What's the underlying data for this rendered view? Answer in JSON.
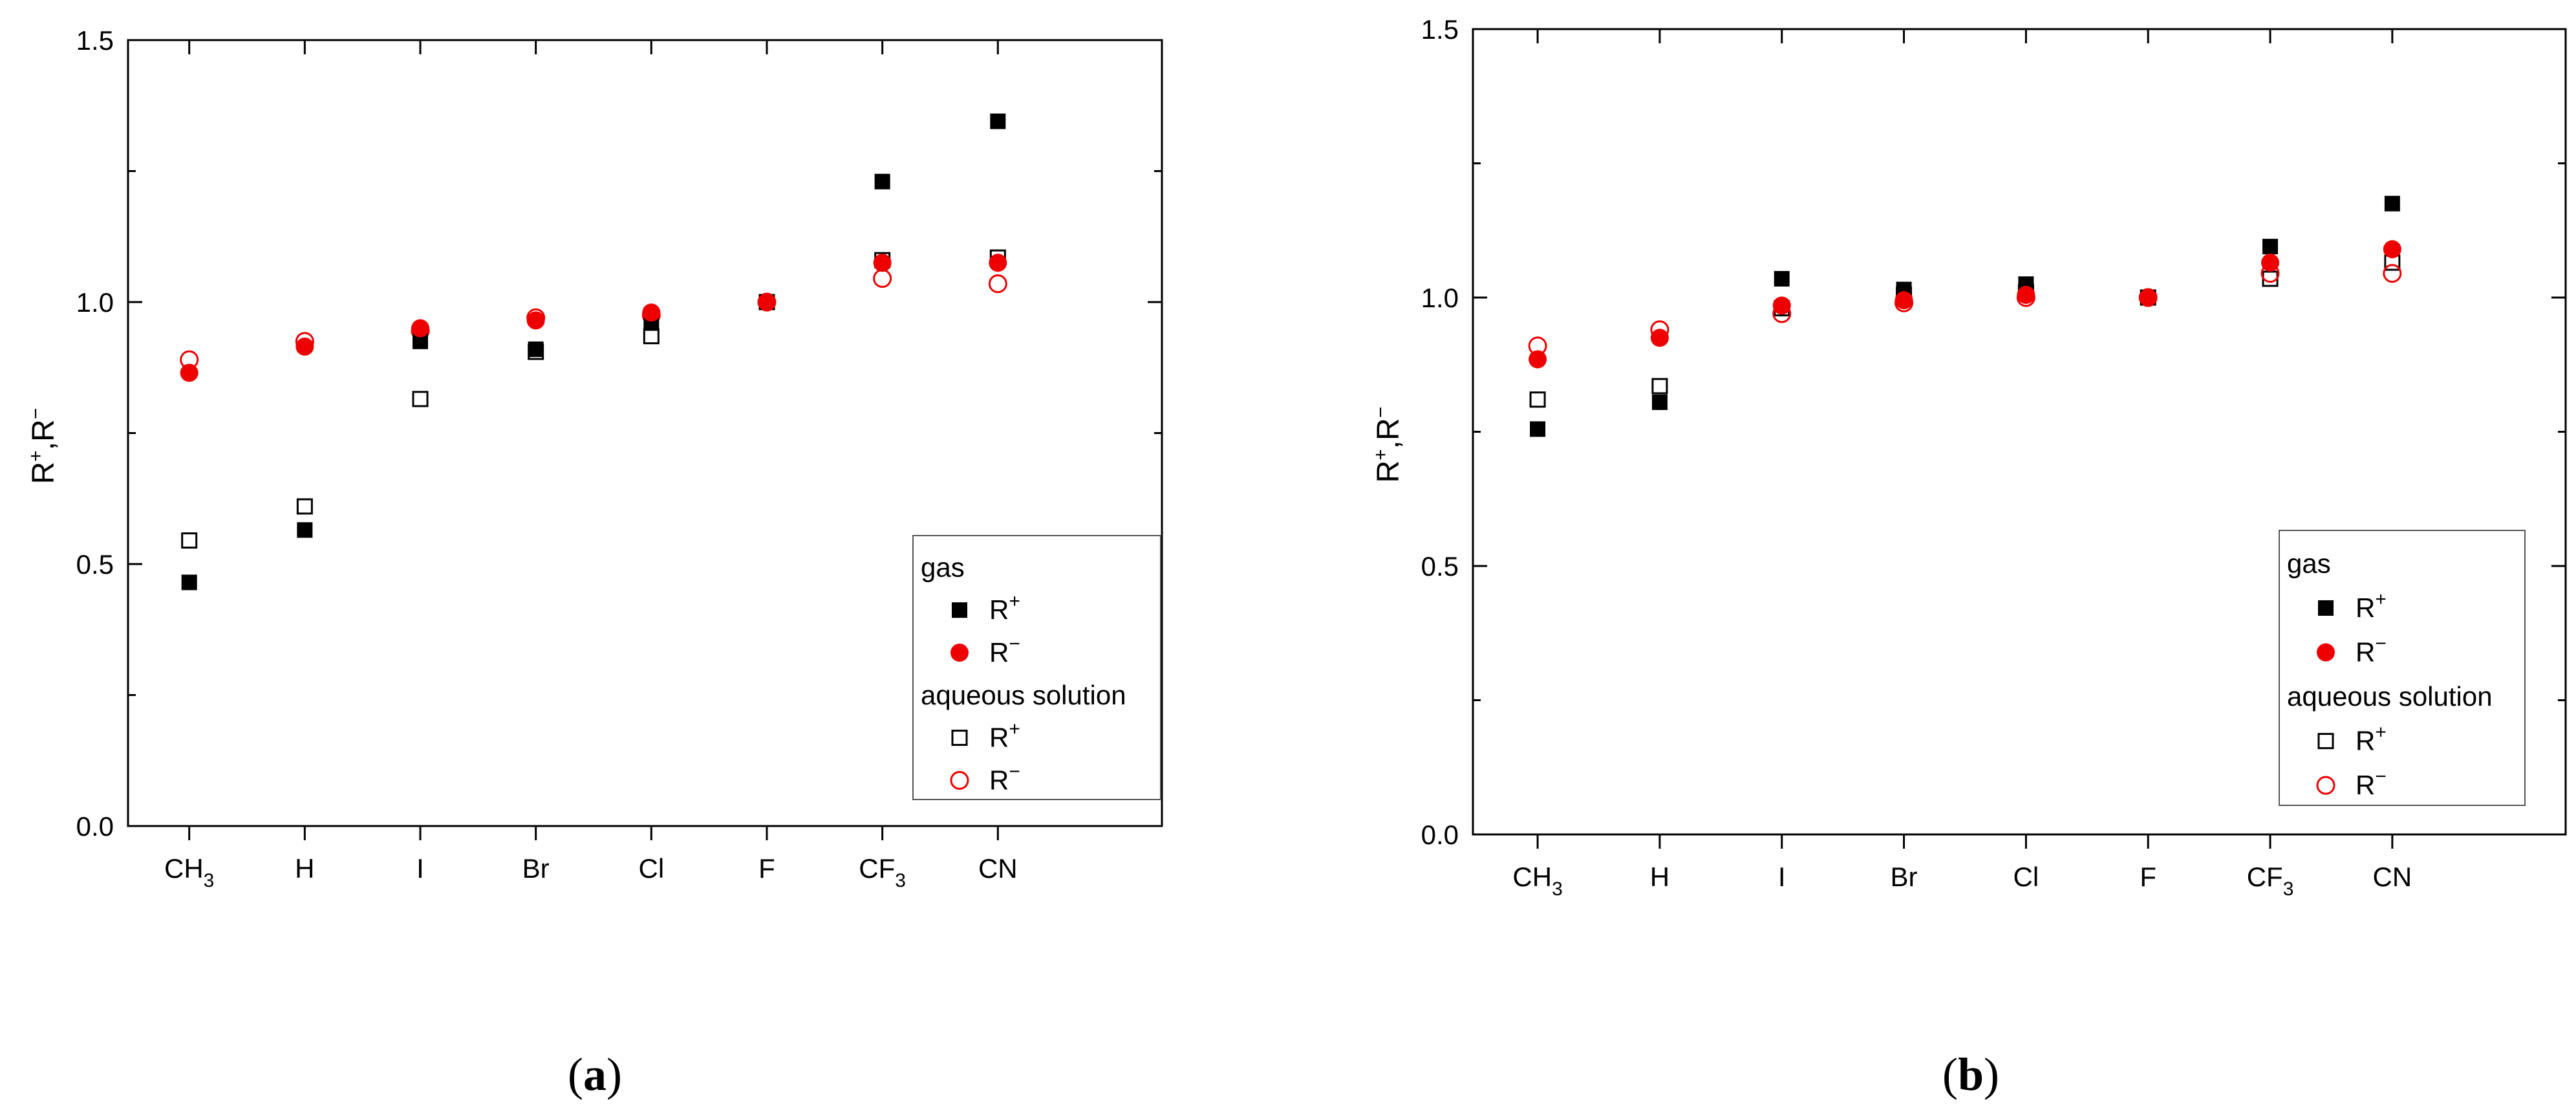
{
  "chart_data": [
    {
      "panel": "a",
      "type": "scatter",
      "categories": [
        "CH3",
        "H",
        "I",
        "Br",
        "Cl",
        "F",
        "CF3",
        "CN"
      ],
      "ylabel": "R+,R−",
      "ylim": [
        0.0,
        1.5
      ],
      "yticks": [
        "0.0",
        "0.5",
        "1.0",
        "1.5"
      ],
      "series": [
        {
          "name": "gas R+",
          "marker": "filled-square",
          "color": "#000000",
          "values": [
            0.465,
            0.565,
            0.925,
            0.91,
            0.96,
            1.0,
            1.23,
            1.345
          ]
        },
        {
          "name": "gas R−",
          "marker": "filled-circle",
          "color": "#ee0000",
          "values": [
            0.865,
            0.915,
            0.95,
            0.965,
            0.98,
            1.0,
            1.075,
            1.075
          ]
        },
        {
          "name": "aqueous solution R+",
          "marker": "open-square",
          "color": "#000000",
          "values": [
            0.545,
            0.61,
            0.815,
            0.905,
            0.935,
            1.0,
            1.08,
            1.085
          ]
        },
        {
          "name": "aqueous solution R−",
          "marker": "open-circle",
          "color": "#ee0000",
          "values": [
            0.89,
            0.925,
            0.945,
            0.97,
            0.975,
            1.0,
            1.045,
            1.035
          ]
        }
      ]
    },
    {
      "panel": "b",
      "type": "scatter",
      "categories": [
        "CH3",
        "H",
        "I",
        "Br",
        "Cl",
        "F",
        "CF3",
        "CN"
      ],
      "ylabel": "R+,R−",
      "ylim": [
        0.0,
        1.5
      ],
      "yticks": [
        "0.0",
        "0.5",
        "1.0",
        "1.5"
      ],
      "series": [
        {
          "name": "gas R+",
          "marker": "filled-square",
          "color": "#000000",
          "values": [
            0.755,
            0.805,
            1.035,
            1.015,
            1.025,
            1.0,
            1.095,
            1.175
          ]
        },
        {
          "name": "gas R−",
          "marker": "filled-circle",
          "color": "#ee0000",
          "values": [
            0.885,
            0.925,
            0.985,
            0.995,
            1.005,
            1.0,
            1.065,
            1.09
          ]
        },
        {
          "name": "aqueous solution R+",
          "marker": "open-square",
          "color": "#000000",
          "values": [
            0.81,
            0.835,
            0.98,
            1.005,
            1.01,
            1.0,
            1.035,
            1.065
          ]
        },
        {
          "name": "aqueous solution R−",
          "marker": "open-circle",
          "color": "#ee0000",
          "values": [
            0.91,
            0.94,
            0.97,
            0.99,
            1.0,
            1.0,
            1.045,
            1.045
          ]
        }
      ]
    }
  ],
  "category_labels": [
    {
      "base": "CH",
      "sub": "3"
    },
    {
      "base": "H",
      "sub": ""
    },
    {
      "base": "I",
      "sub": ""
    },
    {
      "base": "Br",
      "sub": ""
    },
    {
      "base": "Cl",
      "sub": ""
    },
    {
      "base": "F",
      "sub": ""
    },
    {
      "base": "CF",
      "sub": "3"
    },
    {
      "base": "CN",
      "sub": ""
    }
  ],
  "ylabel": {
    "r": "R",
    "plus": "+",
    "comma": ",",
    "minus": "−"
  },
  "legend": {
    "gas": "gas",
    "aqueous": "aqueous solution",
    "r": "R",
    "plus": "+",
    "minus": "−"
  },
  "panel_labels": {
    "a": {
      "open": "(",
      "letter": "a",
      "close": ")"
    },
    "b": {
      "open": "(",
      "letter": "b",
      "close": ")"
    }
  },
  "colors": {
    "red": "#ee0000",
    "black": "#000000"
  }
}
